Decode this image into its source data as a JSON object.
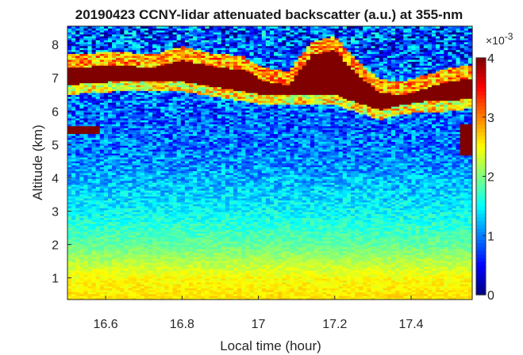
{
  "chart_data": {
    "type": "heatmap",
    "title": "20190423 CCNY-lidar attenuated backscatter (a.u.) at 355-nm",
    "xlabel": "Local time (hour)",
    "ylabel": "Altitude (km)",
    "xlim": [
      16.5,
      17.56
    ],
    "ylim": [
      0.35,
      8.55
    ],
    "xticks": [
      16.6,
      16.8,
      17,
      17.2,
      17.4
    ],
    "xtick_labels": [
      "16.6",
      "16.8",
      "17",
      "17.2",
      "17.4"
    ],
    "yticks": [
      1,
      2,
      3,
      4,
      5,
      6,
      7,
      8
    ],
    "ytick_labels": [
      "1",
      "2",
      "3",
      "4",
      "5",
      "6",
      "7",
      "8"
    ],
    "colorbar": {
      "colormap": "jet",
      "clim": [
        0,
        4
      ],
      "ticks": [
        0,
        1,
        2,
        3,
        4
      ],
      "tick_labels": [
        "0",
        "1",
        "2",
        "3",
        "4"
      ],
      "exponent_base": "×10",
      "exponent_power": "-3",
      "location": "right"
    },
    "background_profile": [
      {
        "altitude_km": 0.4,
        "value": 2.6
      },
      {
        "altitude_km": 1.0,
        "value": 2.5
      },
      {
        "altitude_km": 1.5,
        "value": 2.2
      },
      {
        "altitude_km": 2.0,
        "value": 1.9
      },
      {
        "altitude_km": 2.5,
        "value": 1.7
      },
      {
        "altitude_km": 3.0,
        "value": 1.5
      },
      {
        "altitude_km": 3.5,
        "value": 1.35
      },
      {
        "altitude_km": 4.0,
        "value": 1.2
      },
      {
        "altitude_km": 4.5,
        "value": 1.05
      },
      {
        "altitude_km": 5.0,
        "value": 0.95
      },
      {
        "altitude_km": 5.5,
        "value": 0.9
      },
      {
        "altitude_km": 6.0,
        "value": 0.85
      },
      {
        "altitude_km": 6.5,
        "value": 0.9
      },
      {
        "altitude_km": 7.0,
        "value": 0.9
      },
      {
        "altitude_km": 7.5,
        "value": 0.85
      },
      {
        "altitude_km": 8.0,
        "value": 0.8
      },
      {
        "altitude_km": 8.5,
        "value": 0.8
      }
    ],
    "cloud_layer": {
      "value": 4.0,
      "path": [
        {
          "time": 16.5,
          "bottom_km": 6.8,
          "top_km": 7.3
        },
        {
          "time": 16.56,
          "bottom_km": 6.85,
          "top_km": 7.35
        },
        {
          "time": 16.64,
          "bottom_km": 6.9,
          "top_km": 7.4
        },
        {
          "time": 16.72,
          "bottom_km": 6.9,
          "top_km": 7.3
        },
        {
          "time": 16.8,
          "bottom_km": 6.9,
          "top_km": 7.55
        },
        {
          "time": 16.88,
          "bottom_km": 6.75,
          "top_km": 7.35
        },
        {
          "time": 16.96,
          "bottom_km": 6.6,
          "top_km": 7.25
        },
        {
          "time": 17.02,
          "bottom_km": 6.5,
          "top_km": 6.9
        },
        {
          "time": 17.08,
          "bottom_km": 6.5,
          "top_km": 6.8
        },
        {
          "time": 17.14,
          "bottom_km": 6.5,
          "top_km": 7.7
        },
        {
          "time": 17.2,
          "bottom_km": 6.5,
          "top_km": 7.85
        },
        {
          "time": 17.26,
          "bottom_km": 6.25,
          "top_km": 7.1
        },
        {
          "time": 17.32,
          "bottom_km": 6.05,
          "top_km": 6.55
        },
        {
          "time": 17.38,
          "bottom_km": 6.2,
          "top_km": 6.5
        },
        {
          "time": 17.44,
          "bottom_km": 6.3,
          "top_km": 6.7
        },
        {
          "time": 17.5,
          "bottom_km": 6.3,
          "top_km": 6.9
        },
        {
          "time": 17.56,
          "bottom_km": 6.4,
          "top_km": 7.0
        }
      ]
    },
    "low_cloud_patches": [
      {
        "time_start": 16.5,
        "time_end": 16.58,
        "bottom_km": 5.3,
        "top_km": 5.55
      },
      {
        "time_start": 17.53,
        "time_end": 17.56,
        "bottom_km": 4.7,
        "top_km": 5.6
      }
    ]
  }
}
